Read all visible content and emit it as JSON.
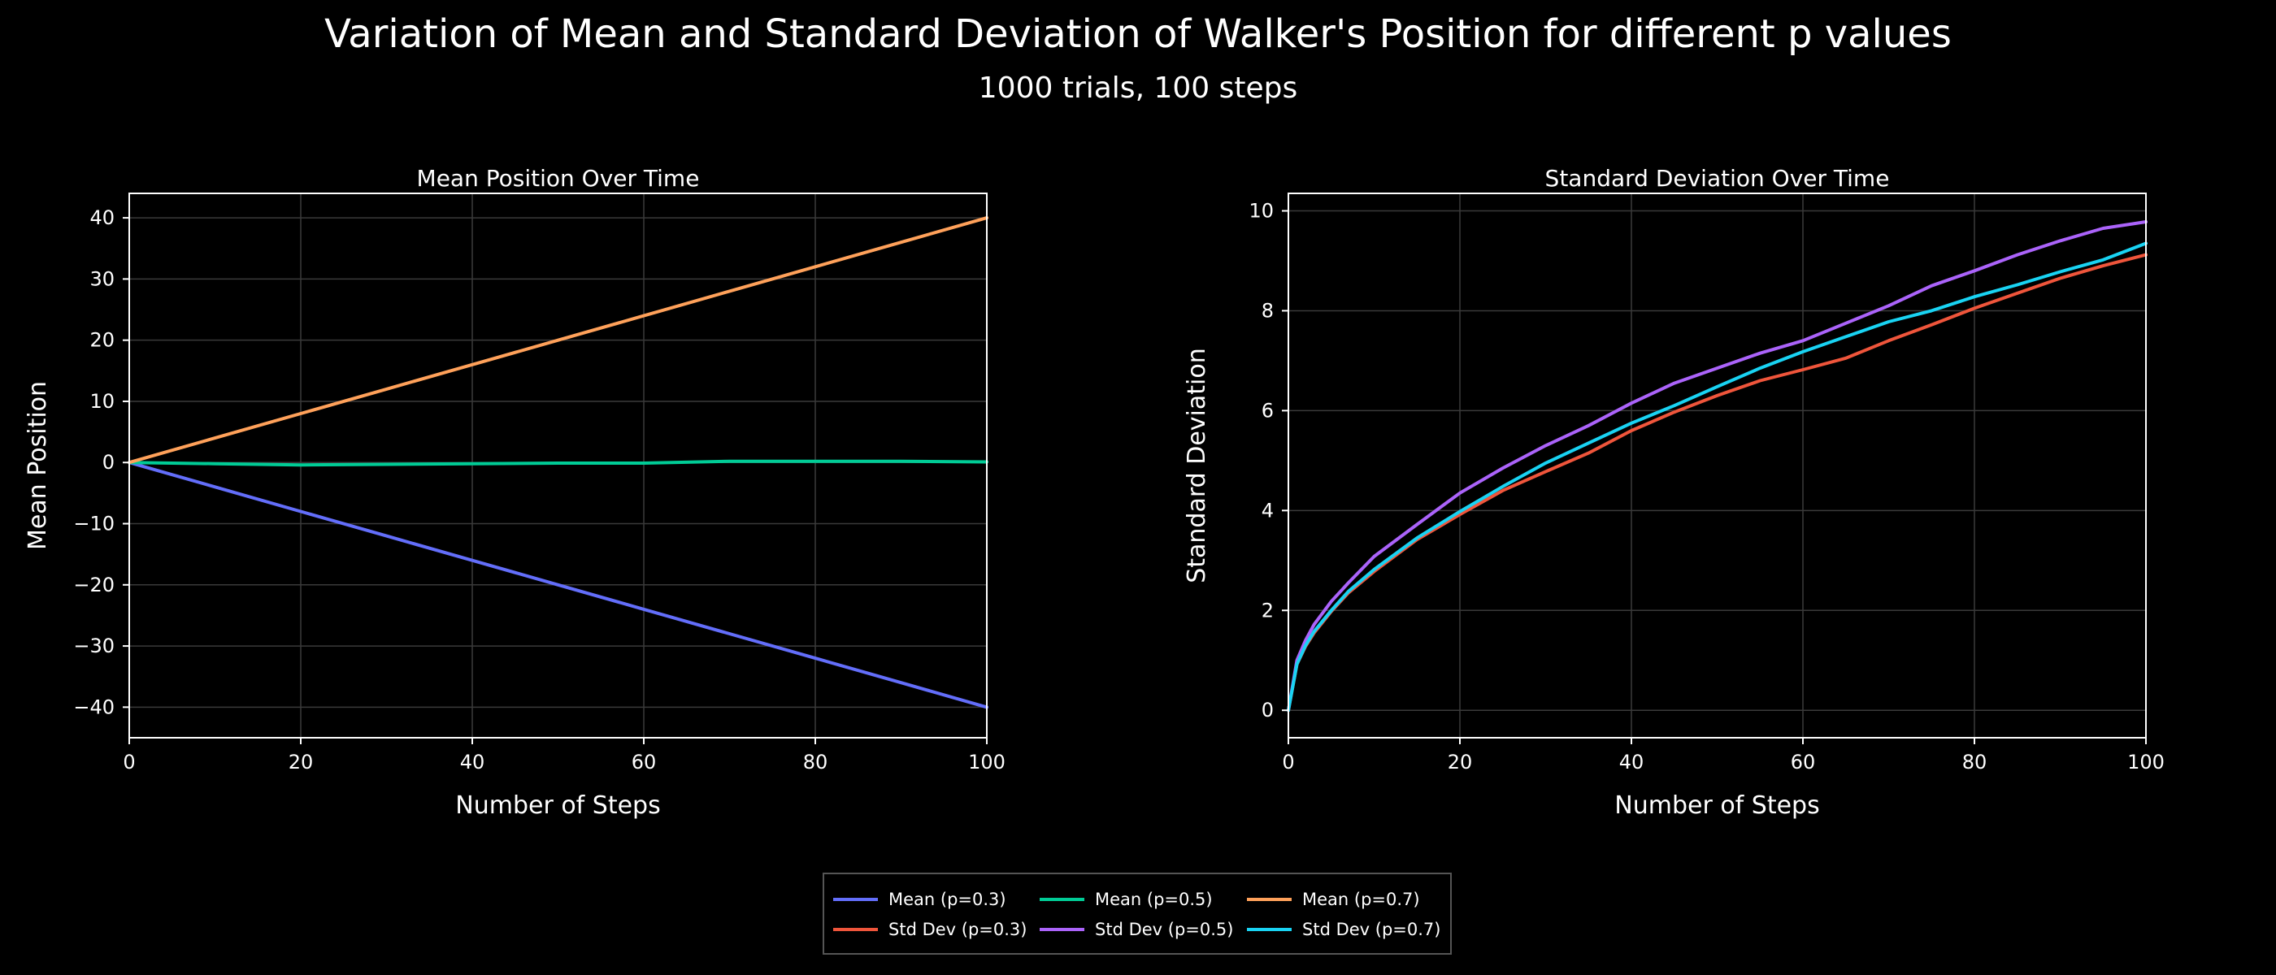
{
  "figure": {
    "title": "Variation of Mean and Standard Deviation of Walker's Position for different p values",
    "subtitle": "1000 trials, 100 steps"
  },
  "chart_data": [
    {
      "type": "line",
      "title": "Mean Position Over Time",
      "xlabel": "Number of Steps",
      "ylabel": "Mean Position",
      "xlim": [
        0,
        100
      ],
      "ylim": [
        -45,
        44
      ],
      "grid": true,
      "x_ticks": [
        0,
        20,
        40,
        60,
        80,
        100
      ],
      "x_tick_labels": [
        "0",
        "20",
        "40",
        "60",
        "80",
        "100"
      ],
      "y_ticks": [
        -40,
        -30,
        -20,
        -10,
        0,
        10,
        20,
        30,
        40
      ],
      "y_tick_labels": [
        "−40",
        "−30",
        "−20",
        "−10",
        "0",
        "10",
        "20",
        "30",
        "40"
      ],
      "series": [
        {
          "name": "Mean (p=0.3)",
          "color": "#636efa",
          "points": [
            [
              0,
              0
            ],
            [
              10,
              -4
            ],
            [
              20,
              -8
            ],
            [
              30,
              -12
            ],
            [
              40,
              -16
            ],
            [
              50,
              -20
            ],
            [
              60,
              -24
            ],
            [
              70,
              -28
            ],
            [
              80,
              -32
            ],
            [
              90,
              -36
            ],
            [
              100,
              -40
            ]
          ]
        },
        {
          "name": "Mean (p=0.5)",
          "color": "#00cc96",
          "points": [
            [
              0,
              0
            ],
            [
              10,
              -0.2
            ],
            [
              20,
              -0.4
            ],
            [
              30,
              -0.3
            ],
            [
              40,
              -0.2
            ],
            [
              50,
              -0.1
            ],
            [
              60,
              -0.1
            ],
            [
              70,
              0.2
            ],
            [
              80,
              0.2
            ],
            [
              90,
              0.2
            ],
            [
              100,
              0.1
            ]
          ]
        },
        {
          "name": "Mean (p=0.7)",
          "color": "#ffa15a",
          "points": [
            [
              0,
              0
            ],
            [
              10,
              4
            ],
            [
              20,
              8
            ],
            [
              30,
              12
            ],
            [
              40,
              16
            ],
            [
              50,
              20
            ],
            [
              60,
              24
            ],
            [
              70,
              28
            ],
            [
              80,
              32
            ],
            [
              90,
              36
            ],
            [
              100,
              40
            ]
          ]
        }
      ]
    },
    {
      "type": "line",
      "title": "Standard Deviation Over Time",
      "xlabel": "Number of Steps",
      "ylabel": "Standard Deviation",
      "xlim": [
        0,
        100
      ],
      "ylim": [
        -0.55,
        10.35
      ],
      "grid": true,
      "x_ticks": [
        0,
        20,
        40,
        60,
        80,
        100
      ],
      "x_tick_labels": [
        "0",
        "20",
        "40",
        "60",
        "80",
        "100"
      ],
      "y_ticks": [
        0,
        2,
        4,
        6,
        8,
        10
      ],
      "y_tick_labels": [
        "0",
        "2",
        "4",
        "6",
        "8",
        "10"
      ],
      "series": [
        {
          "name": "Std Dev (p=0.3)",
          "color": "#ef553b",
          "points": [
            [
              0,
              0
            ],
            [
              1,
              0.92
            ],
            [
              2,
              1.28
            ],
            [
              3,
              1.55
            ],
            [
              5,
              1.98
            ],
            [
              7,
              2.35
            ],
            [
              10,
              2.78
            ],
            [
              15,
              3.42
            ],
            [
              20,
              3.92
            ],
            [
              25,
              4.4
            ],
            [
              30,
              4.78
            ],
            [
              35,
              5.15
            ],
            [
              40,
              5.6
            ],
            [
              45,
              5.97
            ],
            [
              50,
              6.3
            ],
            [
              55,
              6.6
            ],
            [
              60,
              6.82
            ],
            [
              65,
              7.05
            ],
            [
              70,
              7.4
            ],
            [
              75,
              7.72
            ],
            [
              80,
              8.05
            ],
            [
              85,
              8.35
            ],
            [
              90,
              8.65
            ],
            [
              95,
              8.9
            ],
            [
              100,
              9.12
            ]
          ]
        },
        {
          "name": "Std Dev (p=0.5)",
          "color": "#ab63fa",
          "points": [
            [
              0,
              0
            ],
            [
              1,
              1
            ],
            [
              2,
              1.4
            ],
            [
              3,
              1.72
            ],
            [
              5,
              2.18
            ],
            [
              7,
              2.55
            ],
            [
              10,
              3.08
            ],
            [
              15,
              3.72
            ],
            [
              20,
              4.35
            ],
            [
              25,
              4.85
            ],
            [
              30,
              5.3
            ],
            [
              35,
              5.7
            ],
            [
              40,
              6.15
            ],
            [
              45,
              6.55
            ],
            [
              50,
              6.85
            ],
            [
              55,
              7.15
            ],
            [
              60,
              7.4
            ],
            [
              65,
              7.75
            ],
            [
              70,
              8.1
            ],
            [
              75,
              8.5
            ],
            [
              80,
              8.8
            ],
            [
              85,
              9.12
            ],
            [
              90,
              9.4
            ],
            [
              95,
              9.65
            ],
            [
              100,
              9.78
            ]
          ]
        },
        {
          "name": "Std Dev (p=0.7)",
          "color": "#19d3f3",
          "points": [
            [
              0,
              0
            ],
            [
              1,
              0.92
            ],
            [
              2,
              1.3
            ],
            [
              3,
              1.58
            ],
            [
              5,
              2.0
            ],
            [
              7,
              2.38
            ],
            [
              10,
              2.82
            ],
            [
              15,
              3.45
            ],
            [
              20,
              3.98
            ],
            [
              25,
              4.48
            ],
            [
              30,
              4.95
            ],
            [
              35,
              5.35
            ],
            [
              40,
              5.75
            ],
            [
              45,
              6.1
            ],
            [
              50,
              6.48
            ],
            [
              55,
              6.85
            ],
            [
              60,
              7.18
            ],
            [
              65,
              7.48
            ],
            [
              70,
              7.78
            ],
            [
              75,
              8.0
            ],
            [
              80,
              8.28
            ],
            [
              85,
              8.52
            ],
            [
              90,
              8.78
            ],
            [
              95,
              9.02
            ],
            [
              100,
              9.35
            ]
          ]
        }
      ]
    }
  ],
  "legend": {
    "position": "bottom-center",
    "entries": [
      {
        "label": "Mean (p=0.3)",
        "color": "#636efa"
      },
      {
        "label": "Mean (p=0.5)",
        "color": "#00cc96"
      },
      {
        "label": "Mean (p=0.7)",
        "color": "#ffa15a"
      },
      {
        "label": "Std Dev (p=0.3)",
        "color": "#ef553b"
      },
      {
        "label": "Std Dev (p=0.5)",
        "color": "#ab63fa"
      },
      {
        "label": "Std Dev (p=0.7)",
        "color": "#19d3f3"
      }
    ]
  }
}
